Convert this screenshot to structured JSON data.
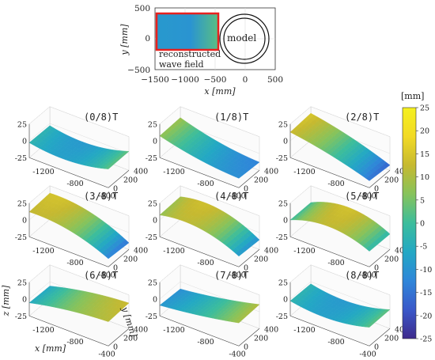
{
  "colors": {
    "rect_outline": "#e8211f",
    "annotation_text": "#e8211f",
    "axis": "#333333",
    "grid": "#dddddd",
    "colormap": [
      "#3e2a8c",
      "#3a58c9",
      "#2f86d9",
      "#23a8c4",
      "#3cbd9c",
      "#86c35c",
      "#c6b930",
      "#f2da25",
      "#f5f01f"
    ]
  },
  "plan_view": {
    "ylabel": "y [mm]",
    "xlabel": "x [mm]",
    "x_ticks": [
      "−1500",
      "−1000",
      "−500",
      "0",
      "500"
    ],
    "y_ticks": [
      "500",
      "0",
      "−500"
    ],
    "annotation": [
      "reconstructed",
      "wave field"
    ],
    "model_label": "model"
  },
  "colorbar": {
    "unit": "[mm]",
    "ticks": [
      "25",
      "20",
      "15",
      "10",
      "5",
      "0",
      "-5",
      "-10",
      "-15",
      "-20",
      "-25"
    ]
  },
  "panel_axes": {
    "z_ticks": [
      "25",
      "0",
      "-25"
    ],
    "x_ticks": [
      "-1200",
      "-800",
      "-400"
    ],
    "y_ticks": [
      "400",
      "200",
      "0"
    ],
    "zlabel": "z [mm]",
    "xlabel": "x [mm]",
    "ylabel": "y [mm]"
  },
  "chart_data": [
    {
      "type": "scatter",
      "xlabel": "x [mm]",
      "ylabel": "y [mm]",
      "xlim": [
        -1500,
        500
      ],
      "ylim": [
        -500,
        500
      ],
      "shapes": [
        {
          "kind": "rectangle",
          "x": [
            -1400,
            -450
          ],
          "y": [
            -350,
            350
          ],
          "annotation": "reconstructed wave field"
        },
        {
          "kind": "circle",
          "center": [
            0,
            0
          ],
          "radius": 420,
          "label": "model"
        }
      ]
    },
    {
      "type": "surface",
      "xlabel": "x [mm]",
      "ylabel": "y [mm]",
      "zlabel": "z [mm]",
      "xlim": [
        -1400,
        -400
      ],
      "ylim": [
        0,
        400
      ],
      "zlim": [
        -25,
        25
      ],
      "colorbar_range": [
        -25,
        25
      ],
      "panels": [
        {
          "label": "(0/8)T",
          "z_left": -3,
          "z_mid": -8,
          "z_right": 3,
          "phase": 0
        },
        {
          "label": "(1/8)T",
          "z_left": 8,
          "z_mid": -6,
          "z_right": -12,
          "phase": 1
        },
        {
          "label": "(2/8)T",
          "z_left": 14,
          "z_mid": 2,
          "z_right": -16,
          "phase": 2
        },
        {
          "label": "(3/8)T",
          "z_left": 13,
          "z_mid": 8,
          "z_right": -14,
          "phase": 3
        },
        {
          "label": "(4/8)T",
          "z_left": 8,
          "z_mid": 11,
          "z_right": -10,
          "phase": 4
        },
        {
          "label": "(5/8)T",
          "z_left": 0,
          "z_mid": 13,
          "z_right": -2,
          "phase": 5
        },
        {
          "label": "(6/8)T",
          "z_left": -6,
          "z_mid": 6,
          "z_right": 12,
          "phase": 6
        },
        {
          "label": "(7/8)T",
          "z_left": -10,
          "z_mid": -2,
          "z_right": 10,
          "phase": 7
        },
        {
          "label": "(8/8)T",
          "z_left": -3,
          "z_mid": -8,
          "z_right": 3,
          "phase": 8
        }
      ]
    }
  ]
}
